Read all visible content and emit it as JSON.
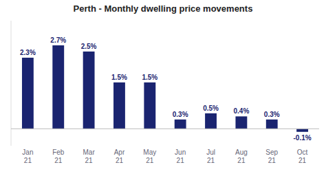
{
  "chart_data": {
    "type": "bar",
    "title": "Perth - Monthly dwelling price movements",
    "categories": [
      "Jan\n21",
      "Feb\n21",
      "Mar\n21",
      "Apr\n21",
      "May\n21",
      "Jun\n21",
      "Jul\n21",
      "Aug\n21",
      "Sep\n21",
      "Oct\n21"
    ],
    "values": [
      2.3,
      2.7,
      2.5,
      1.5,
      1.5,
      0.3,
      0.5,
      0.4,
      0.3,
      -0.1
    ],
    "value_labels": [
      "2.3%",
      "2.7%",
      "2.5%",
      "1.5%",
      "1.5%",
      "0.3%",
      "0.5%",
      "0.4%",
      "0.3%",
      "-0.1%"
    ],
    "data_labels": true,
    "color": "#1a2470",
    "ylim": [
      -0.55,
      3.5
    ],
    "grid": false,
    "tick_labels": "x"
  }
}
